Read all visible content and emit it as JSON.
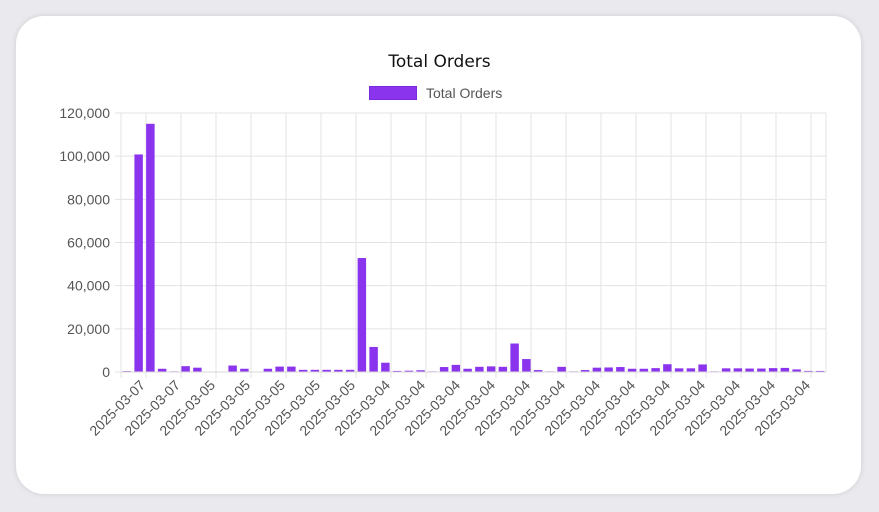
{
  "chart_data": {
    "type": "bar",
    "title": "Total Orders",
    "xlabel": "",
    "ylabel": "",
    "ylim": [
      0,
      120000
    ],
    "yticks": [
      "0",
      "20,000",
      "40,000",
      "60,000",
      "80,000",
      "100,000",
      "120,000"
    ],
    "grid": true,
    "legend_position": "top",
    "bar_color": "#8b34ee",
    "grid_color": "#e3e3e3",
    "tick_label_color": "#555555",
    "x_tick_labels": [
      "2025-03-07",
      "2025-03-07",
      "2025-03-05",
      "2025-03-05",
      "2025-03-05",
      "2025-03-05",
      "2025-03-05",
      "2025-03-04",
      "2025-03-04",
      "2025-03-04",
      "2025-03-04",
      "2025-03-04",
      "2025-03-04",
      "2025-03-04",
      "2025-03-04",
      "2025-03-04",
      "2025-03-04",
      "2025-03-04",
      "2025-03-04",
      "2025-03-04"
    ],
    "series": [
      {
        "name": "Total Orders",
        "values": [
          400,
          100800,
          115000,
          1500,
          300,
          2700,
          2000,
          200,
          200,
          3000,
          1500,
          200,
          1500,
          2500,
          2500,
          1000,
          1000,
          1000,
          1000,
          1000,
          52800,
          11600,
          4300,
          500,
          600,
          800,
          300,
          2300,
          3300,
          1500,
          2400,
          2600,
          2400,
          13200,
          6000,
          900,
          300,
          2400,
          300,
          900,
          2000,
          2100,
          2300,
          1500,
          1500,
          1800,
          3600,
          1700,
          1700,
          3500,
          300,
          1700,
          1700,
          1600,
          1600,
          1800,
          1900,
          1200,
          500,
          500
        ]
      }
    ]
  }
}
